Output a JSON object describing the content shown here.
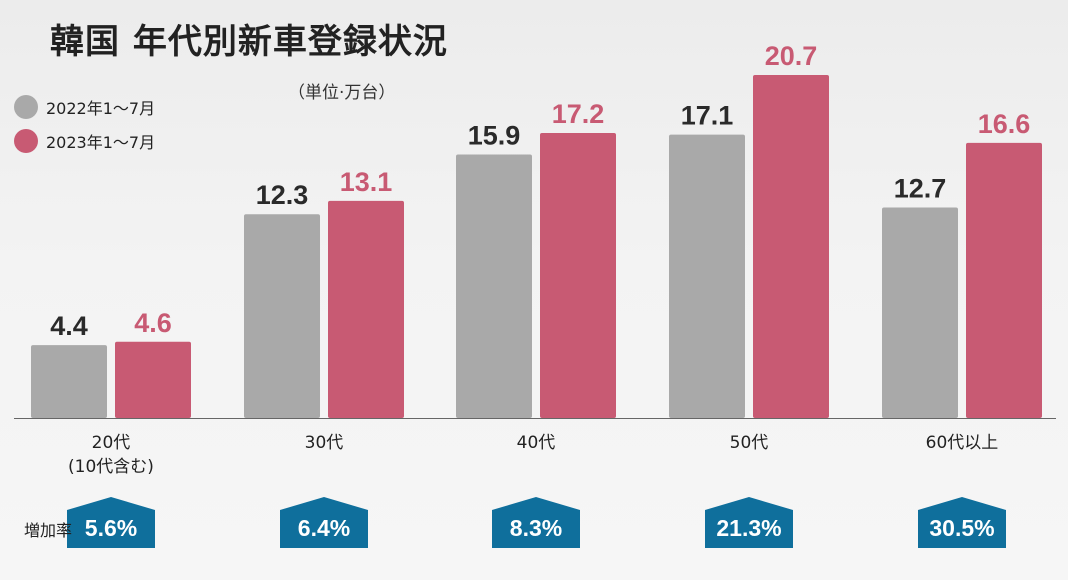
{
  "page": {
    "title": "韓国 年代別新車登録状況",
    "unit": "（単位·万台）",
    "rate_label": "増加率"
  },
  "colors": {
    "series_2022": "#a9a9a9",
    "series_2023": "#c85a73",
    "rate_badge": "#0f6f9c"
  },
  "chart_data": {
    "type": "bar",
    "title": "韓国 年代別新車登録状況",
    "unit": "（単位·万台）",
    "categories": [
      "20代\n(10代含む)",
      "30代",
      "40代",
      "50代",
      "60代以上"
    ],
    "series": [
      {
        "name": "2022年1〜7月",
        "color": "#a9a9a9",
        "values": [
          4.4,
          12.3,
          15.9,
          17.1,
          12.7
        ]
      },
      {
        "name": "2023年1〜7月",
        "color": "#c85a73",
        "values": [
          4.6,
          13.1,
          17.2,
          20.7,
          16.6
        ]
      }
    ],
    "growth_rates": [
      "5.6%",
      "6.4%",
      "8.3%",
      "21.3%",
      "30.5%"
    ],
    "ylim": [
      0,
      20.7
    ],
    "grid": false,
    "legend": "top-left"
  }
}
